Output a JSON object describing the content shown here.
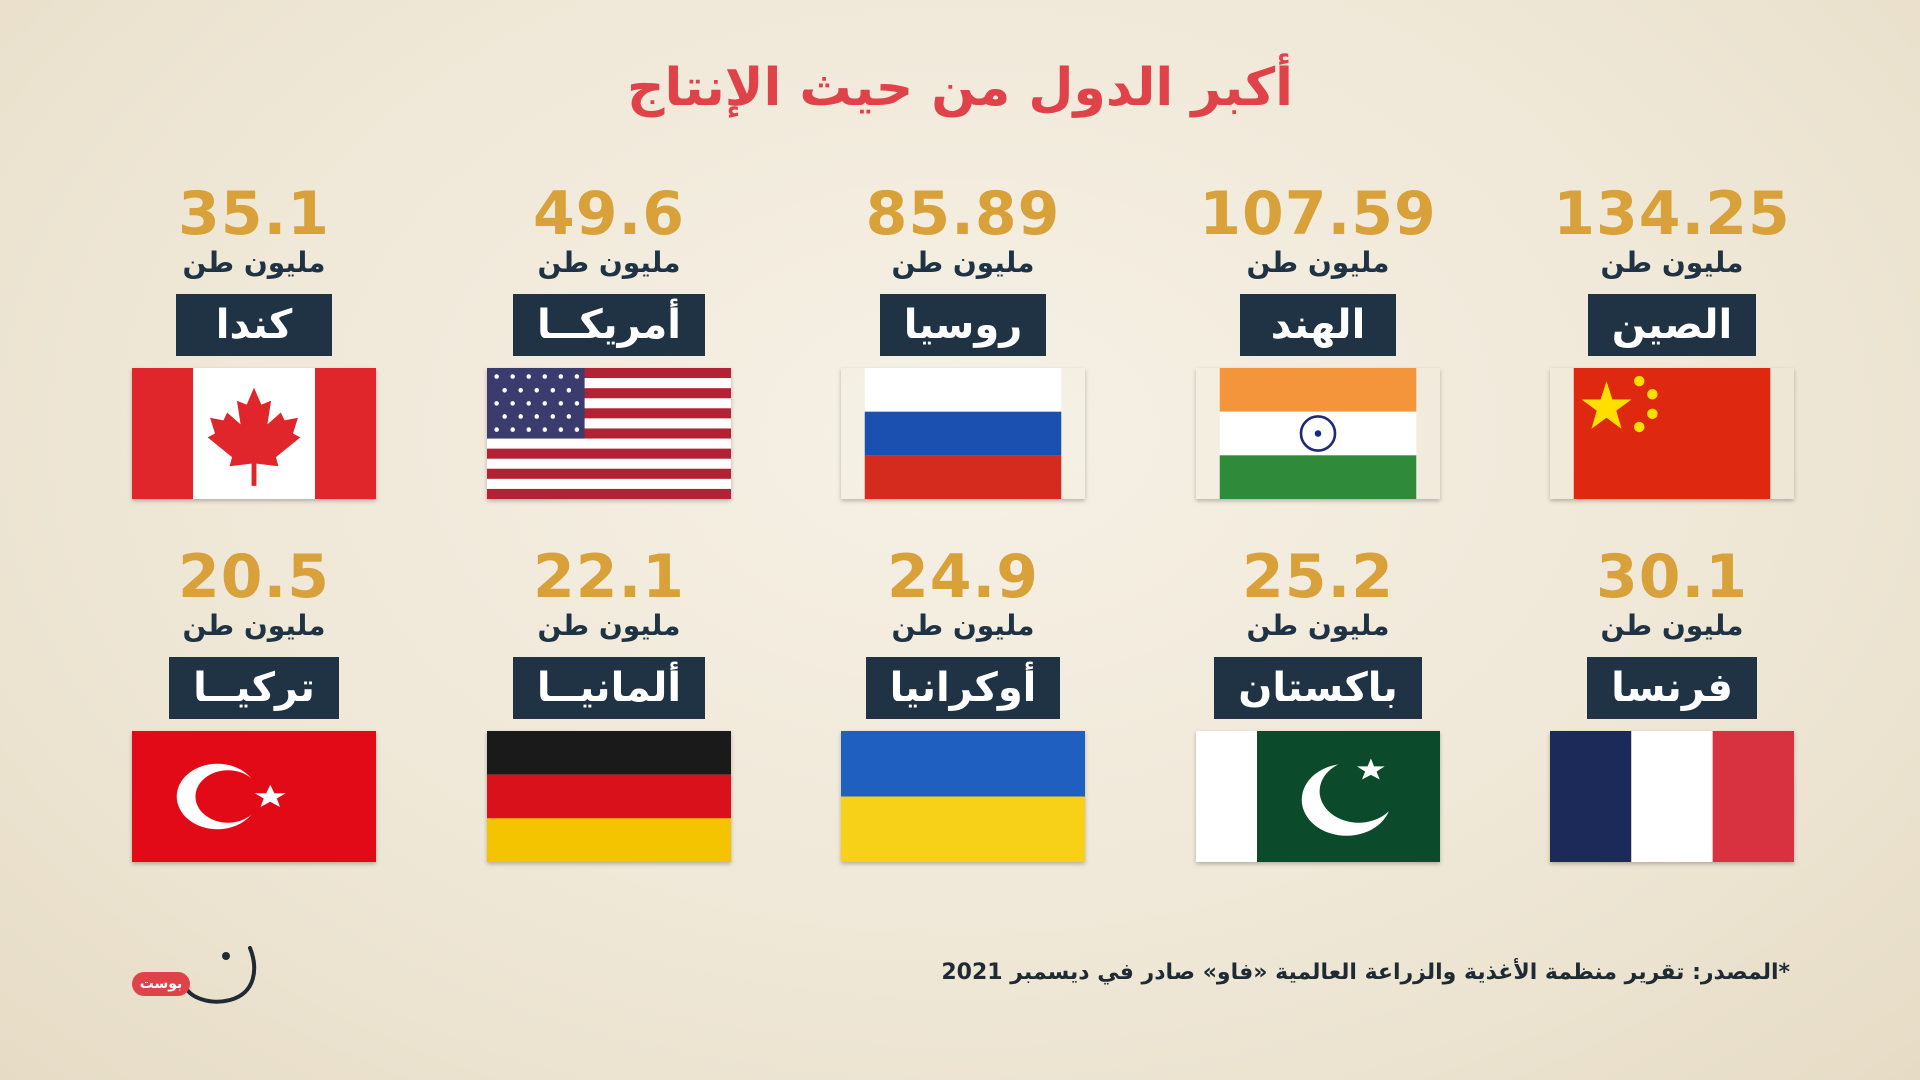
{
  "title": "أكبر الدول من حيث الإنتاج",
  "countries": [
    {
      "value": "134.25",
      "unit": "مليون طن",
      "name": "الصين"
    },
    {
      "value": "107.59",
      "unit": "مليون طن",
      "name": "الهند"
    },
    {
      "value": "85.89",
      "unit": "مليون طن",
      "name": "روسيا"
    },
    {
      "value": "49.6",
      "unit": "مليون طن",
      "name": "أمريكــا"
    },
    {
      "value": "35.1",
      "unit": "مليون طن",
      "name": "كندا"
    },
    {
      "value": "30.1",
      "unit": "مليون طن",
      "name": "فرنسا"
    },
    {
      "value": "25.2",
      "unit": "مليون طن",
      "name": "باكستان"
    },
    {
      "value": "24.9",
      "unit": "مليون طن",
      "name": "أوكرانيا"
    },
    {
      "value": "22.1",
      "unit": "مليون طن",
      "name": "ألمانيــا"
    },
    {
      "value": "20.5",
      "unit": "مليون طن",
      "name": "تركيــا"
    }
  ],
  "source": {
    "label": "*المصدر:",
    "text": "تقرير منظمة الأغذية والزراعة العالمية «فاو» صادر في ديسمبر 2021"
  },
  "logo_text": "بوست",
  "colors": {
    "title": "#e0424a",
    "value": "#d8a13a",
    "label_bg": "#1f3344"
  }
}
